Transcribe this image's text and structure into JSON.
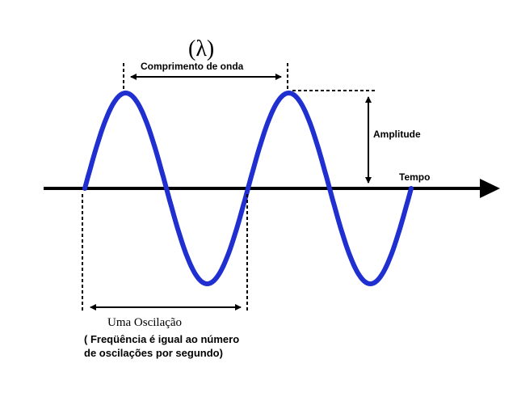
{
  "labels": {
    "lambda": "(λ)",
    "wavelength": "Comprimento de onda",
    "amplitude": "Amplitude",
    "time": "Tempo",
    "oscillation": "Uma Oscilação",
    "frequency_line1": "( Freqüência é igual ao número",
    "frequency_line2": "de oscilações por segundo)"
  },
  "colors": {
    "wave": "#1f2fd0",
    "axis": "#000000",
    "guide": "#000000"
  }
}
